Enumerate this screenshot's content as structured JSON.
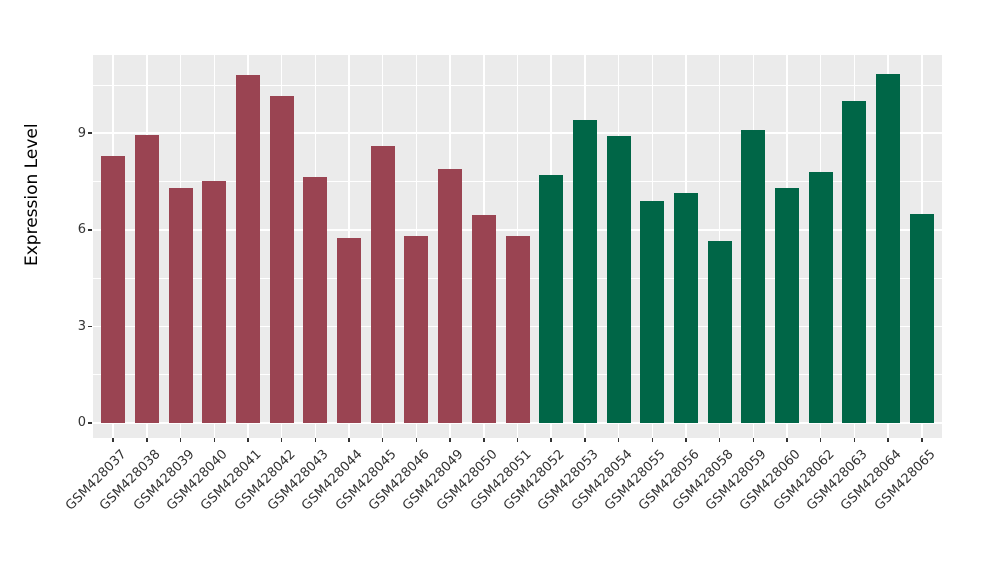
{
  "chart_data": {
    "type": "bar",
    "title": "",
    "xlabel": "",
    "ylabel": "Expression Level",
    "categories": [
      "GSM428037",
      "GSM428038",
      "GSM428039",
      "GSM428040",
      "GSM428041",
      "GSM428042",
      "GSM428043",
      "GSM428044",
      "GSM428045",
      "GSM428046",
      "GSM428049",
      "GSM428050",
      "GSM428051",
      "GSM428052",
      "GSM428053",
      "GSM428054",
      "GSM428055",
      "GSM428056",
      "GSM428058",
      "GSM428059",
      "GSM428060",
      "GSM428062",
      "GSM428063",
      "GSM428064",
      "GSM428065"
    ],
    "values": [
      8.3,
      8.95,
      7.3,
      7.5,
      10.8,
      10.15,
      7.65,
      5.75,
      8.6,
      5.8,
      7.9,
      6.45,
      5.8,
      7.7,
      9.4,
      8.9,
      6.9,
      7.15,
      5.65,
      9.1,
      7.3,
      7.8,
      10.0,
      10.85,
      6.5
    ],
    "groups": [
      "group1",
      "group1",
      "group1",
      "group1",
      "group1",
      "group1",
      "group1",
      "group1",
      "group1",
      "group1",
      "group1",
      "group1",
      "group1",
      "group2",
      "group2",
      "group2",
      "group2",
      "group2",
      "group2",
      "group2",
      "group2",
      "group2",
      "group2",
      "group2",
      "group2"
    ],
    "group_colors": {
      "group1": "#9A4452",
      "group2": "#006647"
    },
    "yticks": [
      0,
      3,
      6,
      9
    ],
    "ylim": [
      -0.47,
      11.43
    ],
    "grid": {
      "major": [
        0,
        3,
        6,
        9
      ],
      "minor": [
        1.5,
        4.5,
        7.5,
        10.5
      ],
      "color": "#FFFFFF",
      "vertical_at_each_category": true
    },
    "panel_bg": "#EBEBEB",
    "background": "#FFFFFF",
    "legend": "none"
  }
}
